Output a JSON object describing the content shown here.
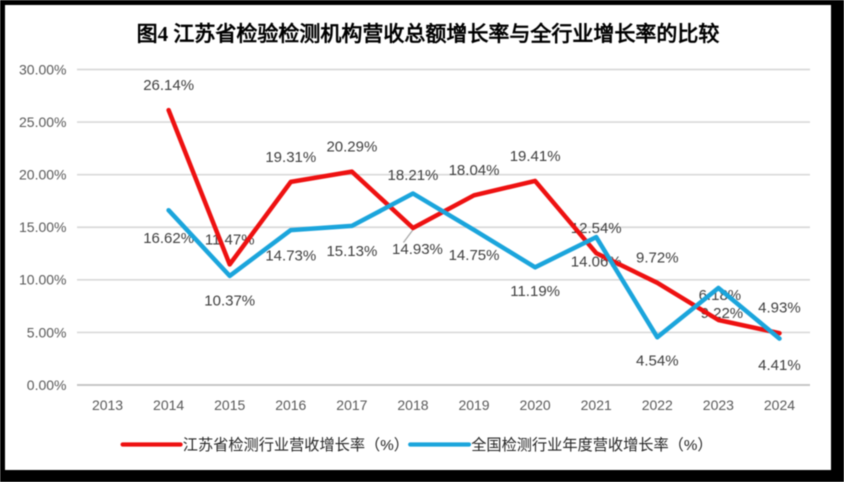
{
  "chart_data": {
    "type": "line",
    "title": "图4 江苏省检验检测机构营收总额增长率与全行业增长率的比较",
    "categories": [
      "2013",
      "2014",
      "2015",
      "2016",
      "2017",
      "2018",
      "2019",
      "2020",
      "2021",
      "2022",
      "2023",
      "2024"
    ],
    "series": [
      {
        "id": "jiangsu",
        "name": "江苏省检测行业营收增长率（%）",
        "color": "#EE1111",
        "values": [
          null,
          26.14,
          11.47,
          19.31,
          20.29,
          14.93,
          18.04,
          19.41,
          12.54,
          9.72,
          6.18,
          4.93
        ],
        "labels": [
          null,
          "26.14%",
          "11.47%",
          "19.31%",
          "20.29%",
          "14.93%",
          "18.04%",
          "19.41%",
          "12.54%",
          "9.72%",
          "6.18%",
          "4.93%"
        ],
        "label_offsets": [
          null,
          [
            0,
            -25.2
          ],
          [
            0,
            -25
          ],
          [
            0,
            -25
          ],
          [
            0,
            -25.2
          ],
          [
            4.5,
            21
          ],
          [
            0,
            -25.3
          ],
          [
            0,
            -25
          ],
          [
            0,
            -25.2
          ],
          [
            0,
            -25.3
          ],
          [
            1.5,
            -25.2
          ],
          [
            0,
            -25.7
          ]
        ],
        "label_leader_categories": [
          "2018"
        ]
      },
      {
        "id": "national",
        "name": "全国检测行业年度营收增长率（%）",
        "color": "#1BA5DC",
        "values": [
          null,
          16.62,
          10.37,
          14.73,
          15.13,
          18.21,
          14.75,
          11.19,
          14.06,
          4.54,
          9.22,
          4.41
        ],
        "labels": [
          null,
          "16.62%",
          "10.37%",
          "14.73%",
          "15.13%",
          "18.21%",
          "14.75%",
          "11.19%",
          "14.06%",
          "4.54%",
          "9.22%",
          "4.41%"
        ],
        "label_offsets": [
          null,
          [
            0,
            27.5
          ],
          [
            0,
            24.2
          ],
          [
            0,
            25.4
          ],
          [
            0,
            25.1
          ],
          [
            0,
            -18.6
          ],
          [
            0,
            25.1
          ],
          [
            0,
            23.6
          ],
          [
            0,
            24.4
          ],
          [
            0,
            23.2
          ],
          [
            3.5,
            25
          ],
          [
            0,
            26
          ]
        ],
        "label_leader_categories": []
      }
    ],
    "y_axis": {
      "tick_values": [
        0,
        5,
        10,
        15,
        20,
        25,
        30
      ],
      "tick_labels": [
        "0.00%",
        "5.00%",
        "10.00%",
        "15.00%",
        "20.00%",
        "25.00%",
        "30.00%"
      ],
      "min": 0,
      "max": 30
    },
    "grid": true,
    "legend_position": "bottom",
    "data_label_format": "0.00%",
    "colors": {
      "gridline": "#D9D9D9",
      "axis_line": "#BFBFBF",
      "tick_label": "#595959",
      "data_label": "#3F3F3F",
      "title": "#000000",
      "legend_text": "#262626",
      "leader_line": "#A6A6A6",
      "frame": "#000000",
      "background": "#FFFFFF"
    }
  }
}
